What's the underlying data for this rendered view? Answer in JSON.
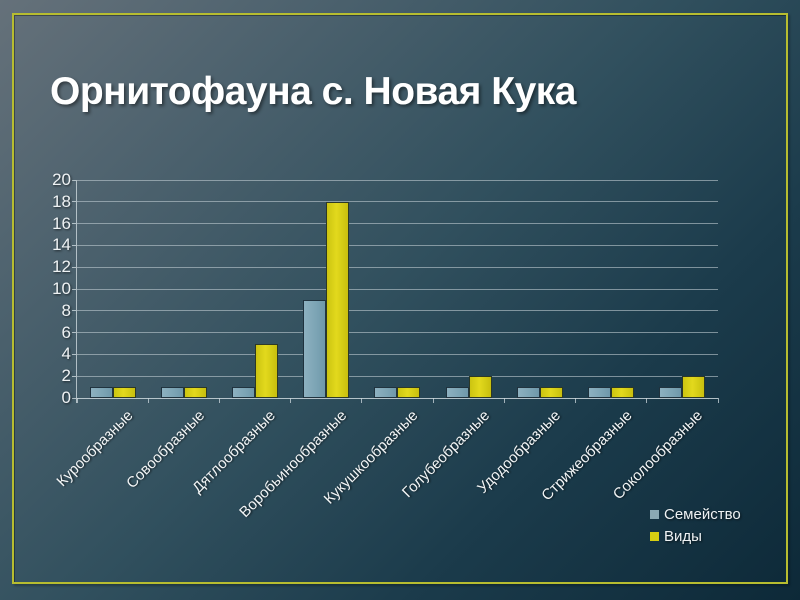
{
  "slide": {
    "title": "Орнитофауна с. Новая Кука"
  },
  "colors": {
    "background_start": "#65717a",
    "background_end": "#0d2938",
    "frame_border": "#b7bd30",
    "gridline": "#bac7cd",
    "text": "#ffffff",
    "family_series": "#7da5b5",
    "species_series": "#d9d013"
  },
  "chart_data": {
    "type": "bar",
    "title": "",
    "xlabel": "",
    "ylabel": "",
    "categories": [
      "Курообразные",
      "Совообразные",
      "Дятлообразные",
      "Воробьинообразные",
      "Кукушкообразные",
      "Голубеобразные",
      "Удодообразные",
      "Стрижеобразные",
      "Соколообразные"
    ],
    "series": [
      {
        "name": "Семейство",
        "color": "#7da5b5",
        "values": [
          1,
          1,
          1,
          9,
          1,
          1,
          1,
          1,
          1
        ]
      },
      {
        "name": "Виды",
        "color": "#d9d013",
        "values": [
          1,
          1,
          5,
          18,
          1,
          2,
          1,
          1,
          2
        ]
      }
    ],
    "ylim": [
      0,
      20
    ],
    "ytick_step": 2,
    "yticks": [
      0,
      2,
      4,
      6,
      8,
      10,
      12,
      14,
      16,
      18,
      20
    ],
    "grid": true,
    "legend_position": "bottom-right"
  }
}
